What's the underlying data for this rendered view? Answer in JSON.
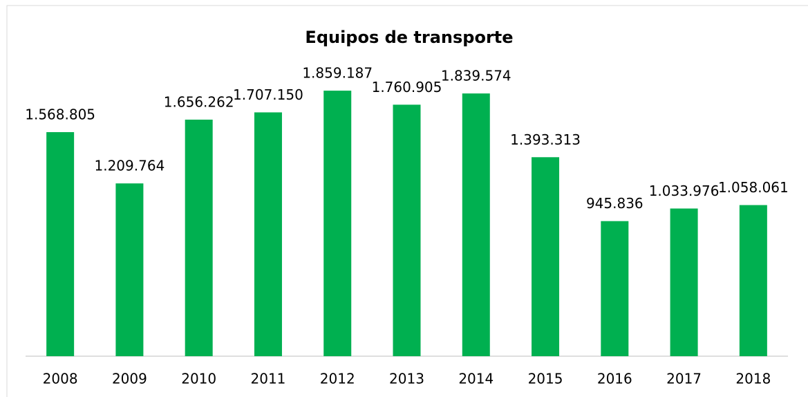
{
  "chart_data": {
    "type": "bar",
    "title": "Equipos de transporte",
    "categories": [
      "2008",
      "2009",
      "2010",
      "2011",
      "2012",
      "2013",
      "2014",
      "2015",
      "2016",
      "2017",
      "2018"
    ],
    "values": [
      1568805,
      1209764,
      1656262,
      1707150,
      1859187,
      1760905,
      1839574,
      1393313,
      945836,
      1033976,
      1058061
    ],
    "value_labels": [
      "1.568.805",
      "1.209.764",
      "1.656.262",
      "1.707.150",
      "1.859.187",
      "1.760.905",
      "1.839.574",
      "1.393.313",
      "945.836",
      "1.033.976",
      "1.058.061"
    ],
    "color": "#00b050",
    "ylim": [
      0,
      2000000
    ]
  }
}
